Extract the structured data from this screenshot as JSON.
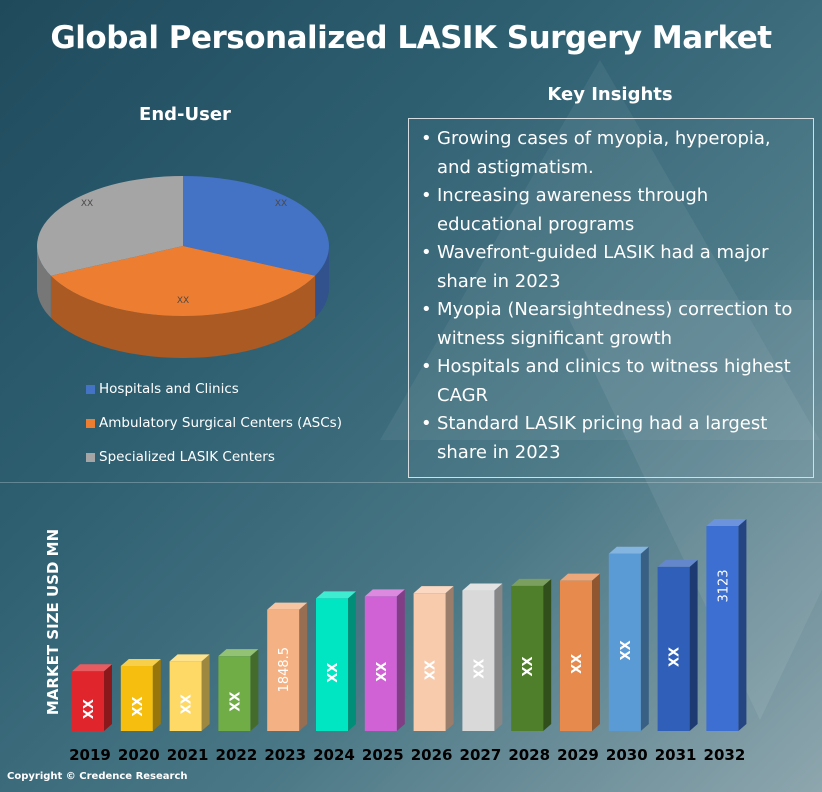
{
  "title": "Global Personalized LASIK Surgery Market",
  "pie": {
    "heading": "End-User",
    "slices": [
      {
        "label": "Hospitals and Clinics",
        "value_label": "XX",
        "color": "#4472c4",
        "share": 0.32
      },
      {
        "label": "Ambulatory Surgical Centers (ASCs)",
        "value_label": "XX",
        "color": "#ed7d31",
        "share": 0.36
      },
      {
        "label": "Specialized LASIK Centers",
        "value_label": "XX",
        "color": "#a5a5a5",
        "share": 0.32
      }
    ]
  },
  "insights": {
    "heading": "Key Insights",
    "items": [
      "Growing cases of myopia, hyperopia, and astigmatism.",
      "Increasing awareness through educational programs",
      "Wavefront-guided LASIK had a major share in 2023",
      "Myopia (Nearsightedness) correction to witness significant growth",
      "Hospitals and clinics to witness highest CAGR",
      "Standard LASIK pricing had a largest share in 2023"
    ]
  },
  "chart_data": {
    "type": "bar",
    "ylabel": "MARKET SIZE USD MN",
    "xlabel": "",
    "categories": [
      "2019",
      "2020",
      "2021",
      "2022",
      "2023",
      "2024",
      "2025",
      "2026",
      "2027",
      "2028",
      "2029",
      "2030",
      "2031",
      "2032"
    ],
    "values": [
      910,
      990,
      1060,
      1140,
      1848.5,
      2020,
      2050,
      2100,
      2140,
      2210,
      2290,
      2700,
      2500,
      3123
    ],
    "value_labels": [
      "XX",
      "XX",
      "XX",
      "XX",
      "1848.5",
      "XX",
      "XX",
      "XX",
      "XX",
      "XX",
      "XX",
      "XX",
      "XX",
      "3123"
    ],
    "bar_colors": [
      "#e0262c",
      "#f6bf0f",
      "#ffd966",
      "#70ad47",
      "#f4b183",
      "#00e5c2",
      "#d062d6",
      "#f8cbad",
      "#d9d9d9",
      "#4f7f2a",
      "#e68a4e",
      "#5b9bd5",
      "#2f5fb8",
      "#3c6fd1"
    ],
    "ylim": [
      0,
      3400
    ],
    "grid": false,
    "legend": "none"
  },
  "footer": {
    "copyright": "Copyright © Credence Research"
  }
}
